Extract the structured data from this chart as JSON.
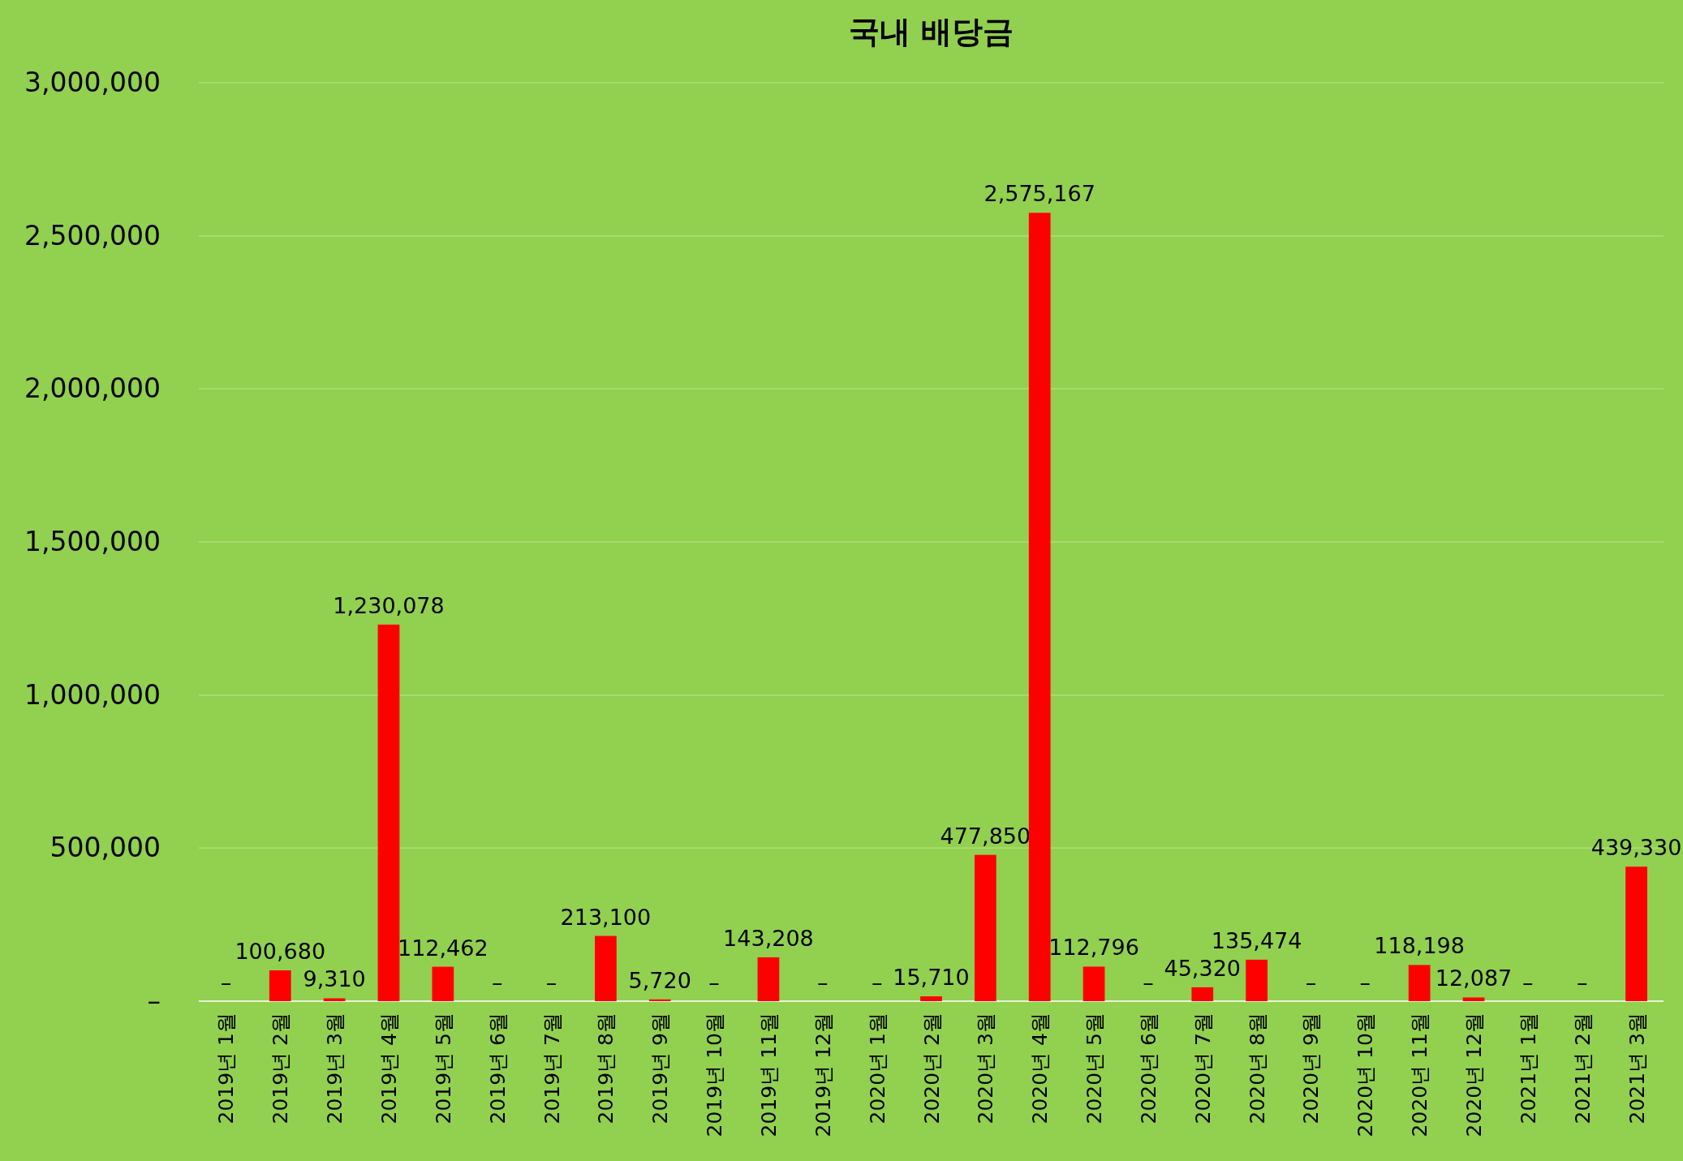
{
  "chart_data": {
    "type": "bar",
    "title": "국내 배당금",
    "categories": [
      "2019년 1월",
      "2019년 2월",
      "2019년 3월",
      "2019년 4월",
      "2019년 5월",
      "2019년 6월",
      "2019년 7월",
      "2019년 8월",
      "2019년 9월",
      "2019년 10월",
      "2019년 11월",
      "2019년 12월",
      "2020년 1월",
      "2020년 2월",
      "2020년 3월",
      "2020년 4월",
      "2020년 5월",
      "2020년 6월",
      "2020년 7월",
      "2020년 8월",
      "2020년 9월",
      "2020년 10월",
      "2020년 11월",
      "2020년 12월",
      "2021년 1월",
      "2021년 2월",
      "2021년 3월"
    ],
    "values": [
      0,
      100680,
      9310,
      1230078,
      112462,
      0,
      0,
      213100,
      5720,
      0,
      143208,
      0,
      0,
      15710,
      477850,
      2575167,
      112796,
      0,
      45320,
      135474,
      0,
      0,
      118198,
      12087,
      0,
      0,
      439330
    ],
    "value_labels": [
      "–",
      "100,680",
      "9,310",
      "1,230,078",
      "112,462",
      "–",
      "–",
      "213,100",
      "5,720",
      "–",
      "143,208",
      "–",
      "–",
      "15,710",
      "477,850",
      "2,575,167",
      "112,796",
      "–",
      "45,320",
      "135,474",
      "–",
      "–",
      "118,198",
      "12,087",
      "–",
      "–",
      "439,330"
    ],
    "color": "#ff0000",
    "ylim": [
      0,
      3000000
    ],
    "yticks": [
      {
        "value": 0,
        "label": "–"
      },
      {
        "value": 500000,
        "label": "500,000"
      },
      {
        "value": 1000000,
        "label": "1,000,000"
      },
      {
        "value": 1500000,
        "label": "1,500,000"
      },
      {
        "value": 2000000,
        "label": "2,000,000"
      },
      {
        "value": 2500000,
        "label": "2,500,000"
      },
      {
        "value": 3000000,
        "label": "3,000,000"
      }
    ],
    "grid": "y"
  }
}
